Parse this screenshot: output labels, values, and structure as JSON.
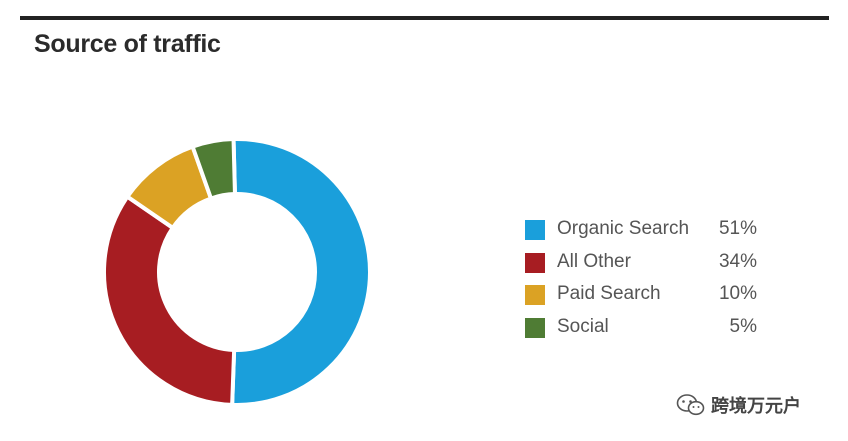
{
  "title": "Source of traffic",
  "watermark": {
    "text": "跨境万元户",
    "icon": "wechat-icon"
  },
  "colors": {
    "organic_search": "#1a9fdb",
    "all_other": "#a71d22",
    "paid_search": "#dba224",
    "social": "#4f7c34"
  },
  "legend": [
    {
      "label": "Organic Search",
      "value_text": "51%",
      "color": "#1a9fdb"
    },
    {
      "label": "All Other",
      "value_text": "34%",
      "color": "#a71d22"
    },
    {
      "label": "Paid Search",
      "value_text": "10%",
      "color": "#dba224"
    },
    {
      "label": "Social",
      "value_text": "5%",
      "color": "#4f7c34"
    }
  ],
  "chart_data": {
    "type": "pie",
    "title": "Source of traffic",
    "categories": [
      "Organic Search",
      "All Other",
      "Paid Search",
      "Social"
    ],
    "values": [
      51,
      34,
      10,
      5
    ],
    "unit": "%",
    "colors": [
      "#1a9fdb",
      "#a71d22",
      "#dba224",
      "#4f7c34"
    ],
    "legend_position": "right"
  }
}
